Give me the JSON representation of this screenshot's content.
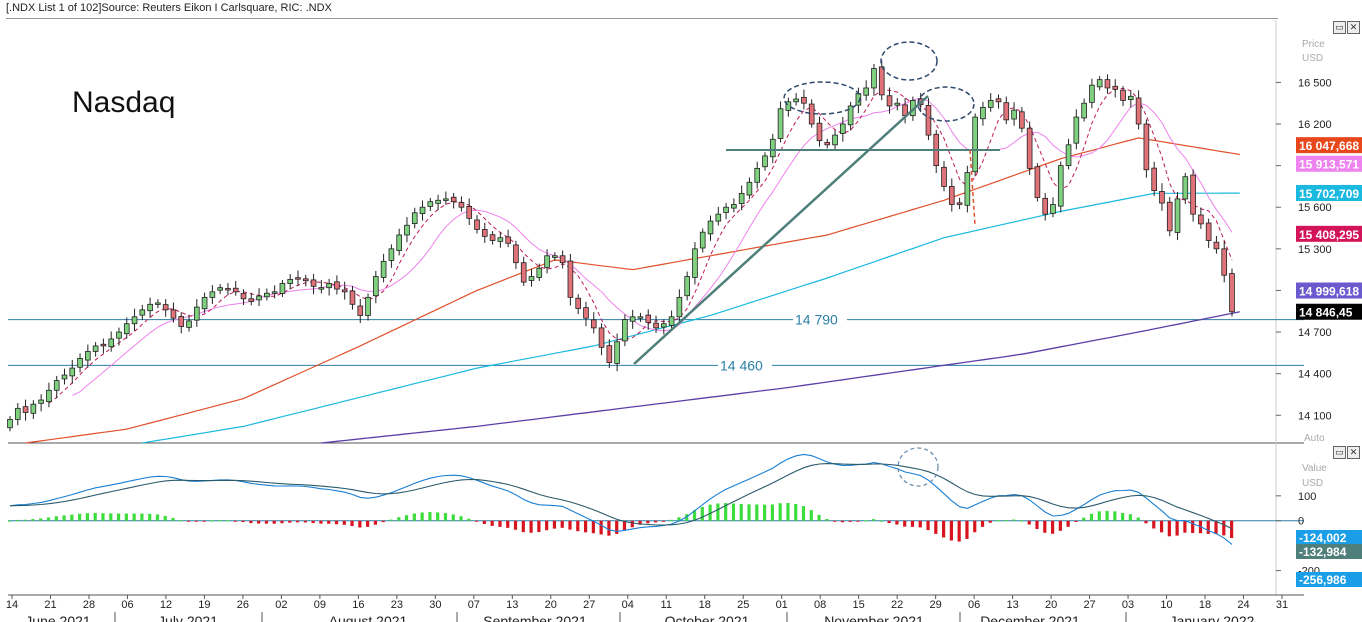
{
  "header": {
    "text": "[.NDX List 1 of 102]Source: Reuters Eikon I Carlsquare, RIC: .NDX"
  },
  "chart_data": [
    {
      "type": "candlestick",
      "title": "Nasdaq",
      "axis_title_top": "Price",
      "axis_title_unit": "USD",
      "auto_label": "Auto",
      "ylim": [
        13900,
        16950
      ],
      "y_ticks": [
        {
          "value": 14100,
          "label": "14 100"
        },
        {
          "value": 14400,
          "label": "14 400"
        },
        {
          "value": 14700,
          "label": "14 700"
        },
        {
          "value": 15000,
          "label": "15 000"
        },
        {
          "value": 15300,
          "label": "15 300"
        },
        {
          "value": 15600,
          "label": "15 600"
        },
        {
          "value": 15900,
          "label": "15 900"
        },
        {
          "value": 16200,
          "label": "16 200"
        },
        {
          "value": 16500,
          "label": "16 500"
        }
      ],
      "support_levels": [
        {
          "value": 14790,
          "label": "14 790"
        },
        {
          "value": 14460,
          "label": "14 460"
        }
      ],
      "value_tags": [
        {
          "value": 16047.668,
          "label": "16 047,668",
          "color": "#e8471c"
        },
        {
          "value": 15913.571,
          "label": "15 913,571",
          "color": "#ee82ee"
        },
        {
          "value": 15702.709,
          "label": "15 702,709",
          "color": "#1ab9e0"
        },
        {
          "value": 15408.295,
          "label": "15 408,295",
          "color": "#d4145a"
        },
        {
          "value": 14999.618,
          "label": "14 999,618",
          "color": "#6a5acd"
        },
        {
          "value": 14846.45,
          "label": "14 846,45",
          "color": "#000000"
        }
      ],
      "closes": [
        14070,
        14150,
        14120,
        14180,
        14210,
        14280,
        14350,
        14390,
        14440,
        14510,
        14560,
        14600,
        14600,
        14650,
        14700,
        14760,
        14810,
        14860,
        14900,
        14910,
        14860,
        14800,
        14740,
        14780,
        14880,
        14950,
        14990,
        15020,
        15010,
        14990,
        14940,
        14920,
        14960,
        14980,
        14990,
        15050,
        15080,
        15090,
        15070,
        15030,
        15020,
        15050,
        15010,
        14990,
        14900,
        14820,
        14950,
        15100,
        15210,
        15300,
        15400,
        15470,
        15560,
        15600,
        15640,
        15650,
        15660,
        15640,
        15600,
        15520,
        15440,
        15390,
        15360,
        15380,
        15340,
        15200,
        15060,
        15100,
        15160,
        15250,
        15250,
        15200,
        14950,
        14870,
        14800,
        14730,
        14590,
        14480,
        14630,
        14790,
        14810,
        14810,
        14770,
        14730,
        14760,
        14810,
        14950,
        15100,
        15300,
        15420,
        15500,
        15550,
        15600,
        15620,
        15700,
        15780,
        15880,
        15970,
        16090,
        16310,
        16360,
        16380,
        16350,
        16200,
        16080,
        16050,
        16120,
        16200,
        16330,
        16420,
        16460,
        16600,
        16410,
        16330,
        16350,
        16260,
        16370,
        16340,
        16120,
        15900,
        15750,
        15620,
        15620,
        15850,
        16250,
        16320,
        16370,
        16360,
        16230,
        16300,
        16170,
        15880,
        15670,
        15550,
        15620,
        15900,
        16050,
        16250,
        16350,
        16480,
        16520,
        16460,
        16450,
        16370,
        16400,
        16200,
        15870,
        15720,
        15630,
        15430,
        15660,
        15820,
        15550,
        15480,
        15360,
        15300,
        15110,
        14846
      ]
    },
    {
      "type": "macd",
      "axis_title_top": "Value",
      "axis_title_unit": "USD",
      "ylim": [
        -290,
        300
      ],
      "y_ticks": [
        {
          "value": 100,
          "label": "100"
        },
        {
          "value": 0,
          "label": "0"
        },
        {
          "value": -200,
          "label": "-200"
        }
      ],
      "value_tags": [
        {
          "value": -124.002,
          "label": "-124,002",
          "color": "#1a9ee8"
        },
        {
          "value": -132.984,
          "label": "-132,984",
          "color": "#4e7f7a"
        },
        {
          "value": -256.986,
          "label": "-256,986",
          "color": "#1a9ee8"
        }
      ]
    }
  ],
  "x_axis": {
    "day_ticks": [
      "14",
      "21",
      "28",
      "06",
      "12",
      "19",
      "26",
      "02",
      "09",
      "16",
      "23",
      "30",
      "07",
      "13",
      "20",
      "27",
      "04",
      "11",
      "18",
      "25",
      "01",
      "08",
      "15",
      "22",
      "29",
      "06",
      "13",
      "20",
      "27",
      "03",
      "10",
      "18",
      "24",
      "31"
    ],
    "months": [
      "June 2021",
      "July 2021",
      "August 2021",
      "September 2021",
      "October 2021",
      "November 2021",
      "December 2021",
      "January 2022"
    ]
  }
}
